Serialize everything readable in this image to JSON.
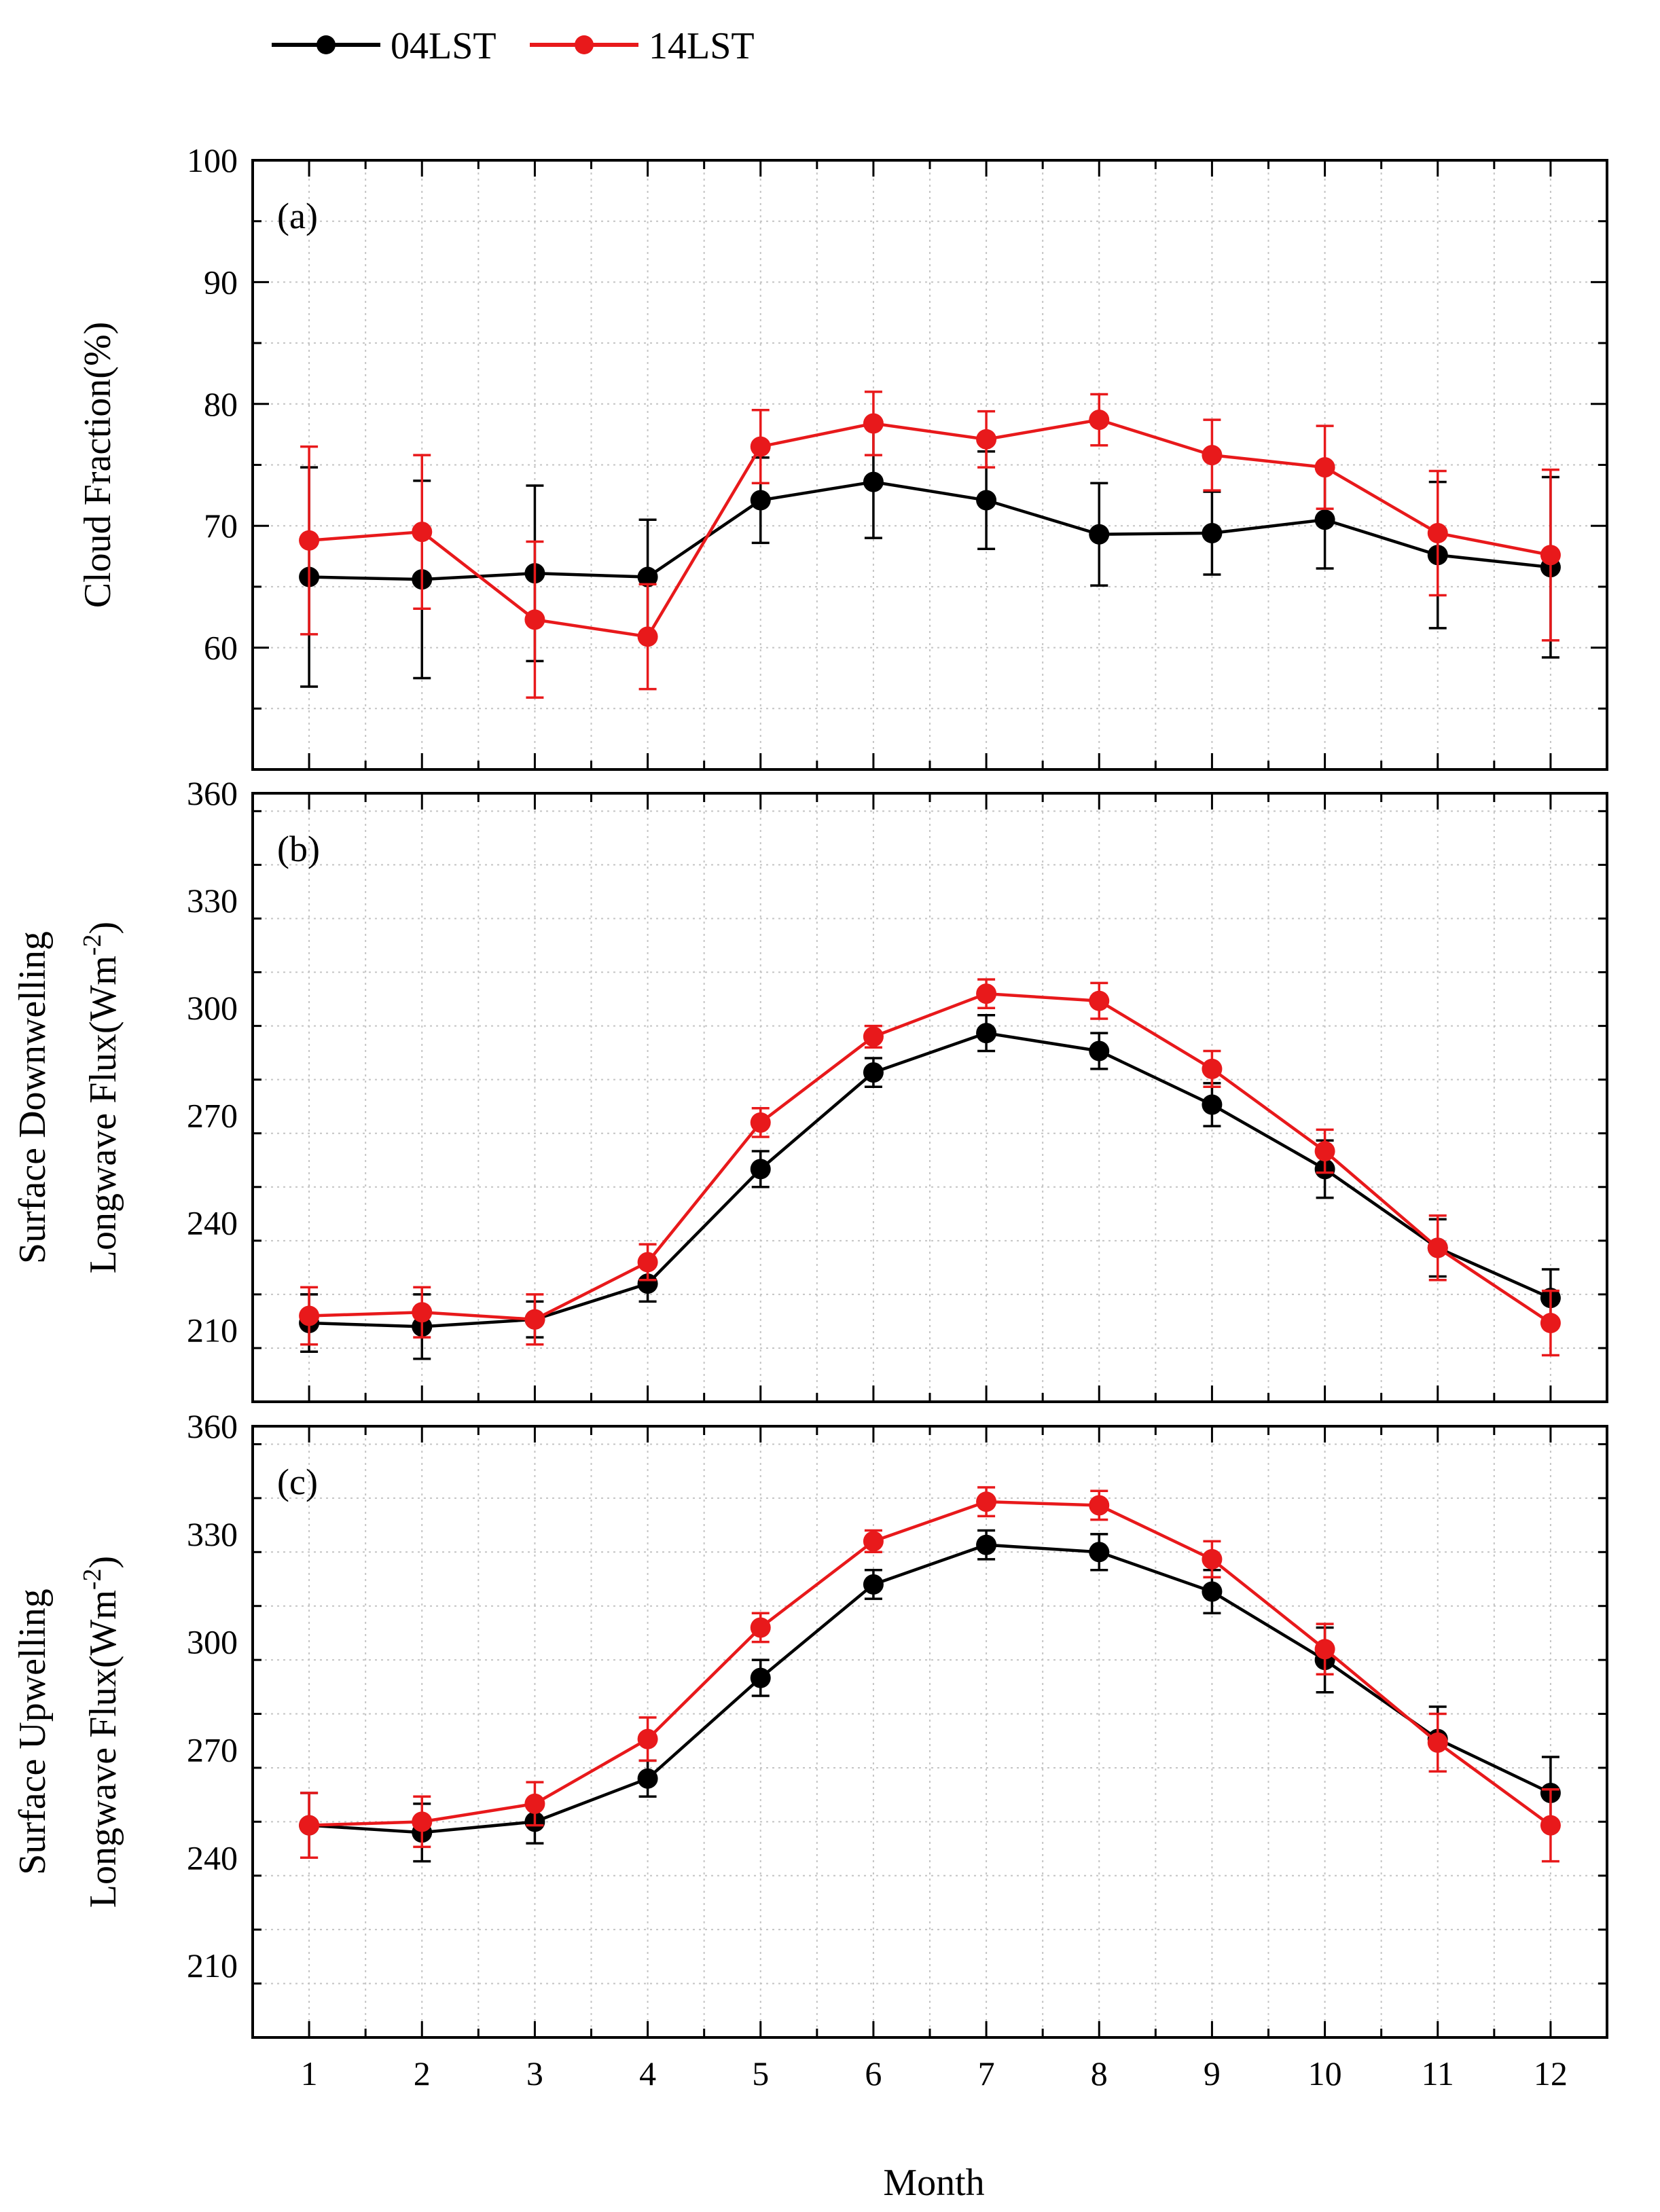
{
  "legend": {
    "position": "top-left",
    "items": [
      {
        "label": "04LST",
        "color": "#000000"
      },
      {
        "label": "14LST",
        "color": "#e8191b"
      }
    ]
  },
  "xlabel": "Month",
  "chart_data": [
    {
      "type": "line",
      "panel_label": "(a)",
      "ylabel_lines": [
        "Cloud Fraction(%)"
      ],
      "ylim": [
        50,
        100
      ],
      "yticks": [
        60,
        70,
        80,
        90,
        100
      ],
      "xlim": [
        0.5,
        12.5
      ],
      "grid": true,
      "x": [
        1,
        2,
        3,
        4,
        5,
        6,
        7,
        8,
        9,
        10,
        11,
        12
      ],
      "series": [
        {
          "name": "04LST",
          "color": "#000000",
          "values": [
            65.8,
            65.6,
            66.1,
            65.8,
            72.1,
            73.6,
            72.1,
            69.3,
            69.4,
            70.5,
            67.6,
            66.6
          ],
          "errors": [
            9.0,
            8.1,
            7.2,
            4.7,
            3.5,
            4.6,
            4.0,
            4.2,
            3.4,
            4.0,
            6.0,
            7.4
          ]
        },
        {
          "name": "14LST",
          "color": "#e8191b",
          "values": [
            68.8,
            69.5,
            62.3,
            60.9,
            76.5,
            78.4,
            77.1,
            78.7,
            75.8,
            74.8,
            69.4,
            67.6
          ],
          "errors": [
            7.7,
            6.3,
            6.4,
            4.3,
            3.0,
            2.6,
            2.3,
            2.1,
            2.9,
            3.4,
            5.1,
            7.0
          ]
        }
      ]
    },
    {
      "type": "line",
      "panel_label": "(b)",
      "ylabel_lines": [
        "Surface Downwelling",
        "Longwave Flux(Wm",
        "-2",
        ")"
      ],
      "ylim": [
        190,
        360
      ],
      "yticks": [
        210,
        240,
        270,
        300,
        330,
        360
      ],
      "xlim": [
        0.5,
        12.5
      ],
      "grid": true,
      "x": [
        1,
        2,
        3,
        4,
        5,
        6,
        7,
        8,
        9,
        10,
        11,
        12
      ],
      "series": [
        {
          "name": "04LST",
          "color": "#000000",
          "values": [
            212,
            211,
            213,
            223,
            255,
            282,
            293,
            288,
            273,
            255,
            233,
            219
          ],
          "errors": [
            8,
            9,
            5,
            5,
            5,
            4,
            5,
            5,
            6,
            8,
            8,
            8
          ]
        },
        {
          "name": "14LST",
          "color": "#e8191b",
          "values": [
            214,
            215,
            213,
            229,
            268,
            292,
            304,
            302,
            283,
            260,
            233,
            212
          ],
          "errors": [
            8,
            7,
            7,
            5,
            4,
            3,
            4,
            5,
            5,
            6,
            9,
            9
          ]
        }
      ]
    },
    {
      "type": "line",
      "panel_label": "(c)",
      "ylabel_lines": [
        "Surface Upwelling",
        "Longwave Flux(Wm",
        "-2",
        ")"
      ],
      "ylim": [
        190,
        360
      ],
      "yticks": [
        210,
        240,
        270,
        300,
        330,
        360
      ],
      "xlim": [
        0.5,
        12.5
      ],
      "grid": true,
      "x": [
        1,
        2,
        3,
        4,
        5,
        6,
        7,
        8,
        9,
        10,
        11,
        12
      ],
      "xticks": [
        "1",
        "2",
        "3",
        "4",
        "5",
        "6",
        "7",
        "8",
        "9",
        "10",
        "11",
        "12"
      ],
      "series": [
        {
          "name": "04LST",
          "color": "#000000",
          "values": [
            249,
            247,
            250,
            262,
            290,
            316,
            327,
            325,
            314,
            295,
            273,
            258
          ],
          "errors": [
            9,
            8,
            6,
            5,
            5,
            4,
            4,
            5,
            6,
            9,
            9,
            10
          ]
        },
        {
          "name": "14LST",
          "color": "#e8191b",
          "values": [
            249,
            250,
            255,
            273,
            304,
            328,
            339,
            338,
            323,
            298,
            272,
            249
          ],
          "errors": [
            9,
            7,
            6,
            6,
            4,
            3,
            4,
            4,
            5,
            7,
            8,
            10
          ]
        }
      ]
    }
  ]
}
